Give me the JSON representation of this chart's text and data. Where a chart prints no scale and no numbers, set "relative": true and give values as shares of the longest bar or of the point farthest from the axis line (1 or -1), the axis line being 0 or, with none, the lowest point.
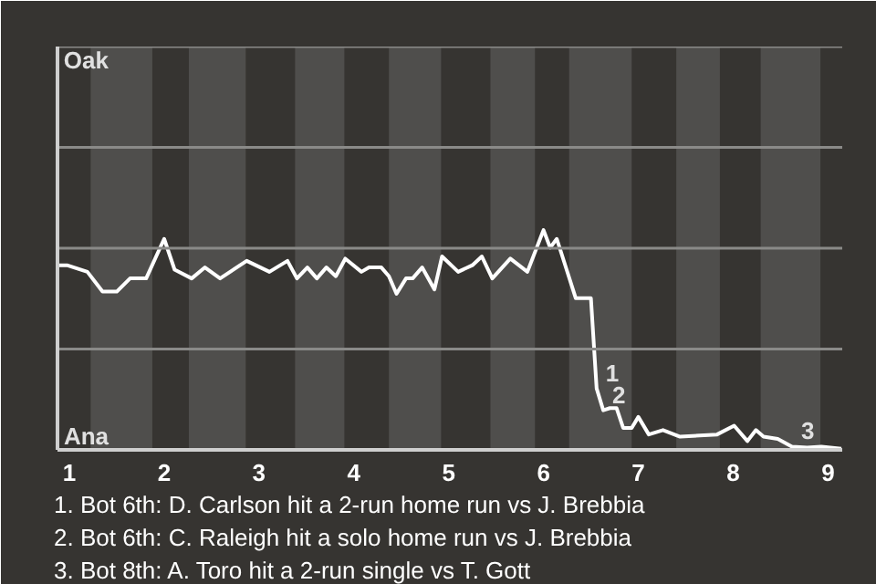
{
  "chart_data": {
    "type": "line",
    "relative": true,
    "x": [
      0.875,
      0.975,
      1.19,
      1.35,
      1.5,
      1.64,
      1.81,
      2,
      2.11,
      2.29,
      2.43,
      2.59,
      2.87,
      3.11,
      3.3,
      3.4,
      3.51,
      3.61,
      3.71,
      3.81,
      3.91,
      4.08,
      4.16,
      4.29,
      4.37,
      4.45,
      4.55,
      4.62,
      4.72,
      4.85,
      4.93,
      5.1,
      5.25,
      5.35,
      5.46,
      5.65,
      5.83,
      6,
      6.07,
      6.14,
      6.34,
      6.5,
      6.56,
      6.63,
      6.7,
      6.77,
      6.84,
      6.93,
      7,
      7.11,
      7.26,
      7.44,
      7.83,
      8.01,
      8.15,
      8.24,
      8.32,
      8.47,
      8.62,
      8.78,
      8.93,
      9.14
    ],
    "series": [
      {
        "color": "#ffffff",
        "values": [
          0.84,
          0.84,
          0.81,
          0.72,
          0.72,
          0.78,
          0.78,
          0.96,
          0.82,
          0.78,
          0.83,
          0.78,
          0.86,
          0.81,
          0.86,
          0.78,
          0.83,
          0.78,
          0.83,
          0.79,
          0.87,
          0.81,
          0.83,
          0.83,
          0.79,
          0.71,
          0.78,
          0.78,
          0.83,
          0.73,
          0.88,
          0.81,
          0.84,
          0.88,
          0.78,
          0.87,
          0.81,
          1,
          0.92,
          0.96,
          0.69,
          0.69,
          0.28,
          0.18,
          0.19,
          0.19,
          0.1,
          0.1,
          0.15,
          0.07,
          0.09,
          0.06,
          0.07,
          0.11,
          0.04,
          0.09,
          0.06,
          0.05,
          0.015,
          0.01,
          0.015,
          0.005
        ]
      }
    ],
    "xlim": [
      0.875,
      9.15
    ],
    "xticks": [
      1,
      2,
      3,
      4,
      5,
      6,
      7,
      8,
      9
    ],
    "line_style": "solid",
    "ref_lines": [
      {
        "axis": "y",
        "value": 0.459,
        "color": "#8a8a88"
      },
      {
        "axis": "y",
        "value": 0.918,
        "color": "#8a8a88"
      },
      {
        "axis": "y",
        "value": 1.376,
        "color": "#8a8a88"
      },
      {
        "axis": "y",
        "value": 1.835,
        "color": "#8a8a88"
      }
    ],
    "bands": [
      {
        "axis": "x",
        "from": 1.225,
        "to": 1.875,
        "color": "#4f4e4c"
      },
      {
        "axis": "x",
        "from": 2.26,
        "to": 2.86,
        "color": "#4f4e4c"
      },
      {
        "axis": "x",
        "from": 3.38,
        "to": 3.9,
        "color": "#4f4e4c"
      },
      {
        "axis": "x",
        "from": 4.37,
        "to": 4.92,
        "color": "#4f4e4c"
      },
      {
        "axis": "x",
        "from": 5.44,
        "to": 5.91,
        "color": "#4f4e4c"
      },
      {
        "axis": "x",
        "from": 6.27,
        "to": 6.93,
        "color": "#4f4e4c"
      },
      {
        "axis": "x",
        "from": 7.4,
        "to": 7.86,
        "color": "#4f4e4c"
      },
      {
        "axis": "x",
        "from": 8.29,
        "to": 8.92,
        "color": "#4f4e4c"
      }
    ],
    "annotations": [
      {
        "text": "1",
        "x": 6.56,
        "y": 0.28
      },
      {
        "text": "2",
        "x": 6.63,
        "y": 0.18
      },
      {
        "text": "3",
        "x": 8.62,
        "y": 0.015
      },
      "Oak",
      "Ana",
      "1. Bot 6th: D. Carlson hit a 2-run home run vs J. Brebbia",
      "2. Bot 6th: C. Raleigh hit a solo home run vs J. Brebbia",
      "3. Bot 8th: A. Toro hit a 2-run single vs T. Gott"
    ]
  }
}
